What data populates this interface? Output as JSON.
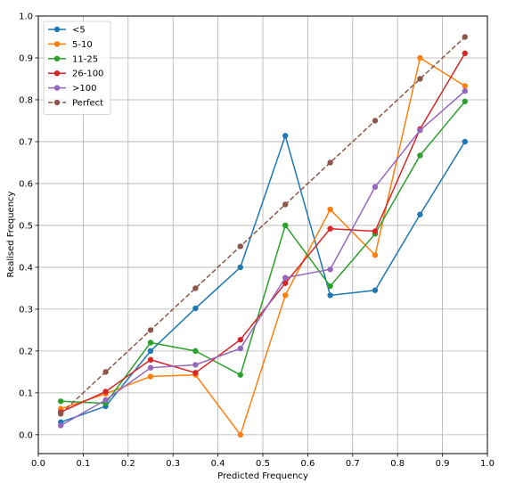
{
  "chart_data": {
    "type": "line",
    "title": "",
    "xlabel": "Predicted Frequency",
    "ylabel": "Realised Frequency",
    "xlim": [
      0.0,
      1.0
    ],
    "ylim": [
      -0.045,
      1.0
    ],
    "xticks": [
      0.0,
      0.1,
      0.2,
      0.3,
      0.4,
      0.5,
      0.6,
      0.7,
      0.8,
      0.9,
      1.0
    ],
    "yticks": [
      0.0,
      0.1,
      0.2,
      0.3,
      0.4,
      0.5,
      0.6,
      0.7,
      0.8,
      0.9,
      1.0
    ],
    "xtick_labels": [
      "0.0",
      "0.1",
      "0.2",
      "0.3",
      "0.4",
      "0.5",
      "0.6",
      "0.7",
      "0.8",
      "0.9",
      "1.0"
    ],
    "ytick_labels": [
      "0.0",
      "0.1",
      "0.2",
      "0.3",
      "0.4",
      "0.5",
      "0.6",
      "0.7",
      "0.8",
      "0.9",
      "1.0"
    ],
    "grid": true,
    "legend_position": "top-left",
    "x": [
      0.05,
      0.15,
      0.25,
      0.35,
      0.45,
      0.55,
      0.65,
      0.75,
      0.85,
      0.95
    ],
    "series": [
      {
        "name": "<5",
        "color": "#1f77b4",
        "dashed": false,
        "values": [
          0.03,
          0.068,
          0.2,
          0.302,
          0.4,
          0.714,
          0.333,
          0.345,
          0.526,
          0.7
        ]
      },
      {
        "name": "5-10",
        "color": "#ff7f0e",
        "dashed": false,
        "values": [
          0.062,
          0.098,
          0.139,
          0.143,
          0.0,
          0.333,
          0.538,
          0.429,
          0.9,
          0.833
        ]
      },
      {
        "name": "11-25",
        "color": "#2ca02c",
        "dashed": false,
        "values": [
          0.08,
          0.075,
          0.22,
          0.2,
          0.143,
          0.5,
          0.355,
          0.48,
          0.667,
          0.796
        ]
      },
      {
        "name": "26-100",
        "color": "#d62728",
        "dashed": false,
        "values": [
          0.054,
          0.103,
          0.179,
          0.148,
          0.227,
          0.362,
          0.492,
          0.486,
          0.73,
          0.911
        ]
      },
      {
        "name": ">100",
        "color": "#9467bd",
        "dashed": false,
        "values": [
          0.022,
          0.083,
          0.16,
          0.167,
          0.206,
          0.375,
          0.395,
          0.592,
          0.727,
          0.821
        ]
      },
      {
        "name": "Perfect",
        "color": "#8c564b",
        "dashed": true,
        "values": [
          0.05,
          0.15,
          0.25,
          0.35,
          0.45,
          0.55,
          0.65,
          0.75,
          0.85,
          0.95
        ]
      }
    ]
  }
}
